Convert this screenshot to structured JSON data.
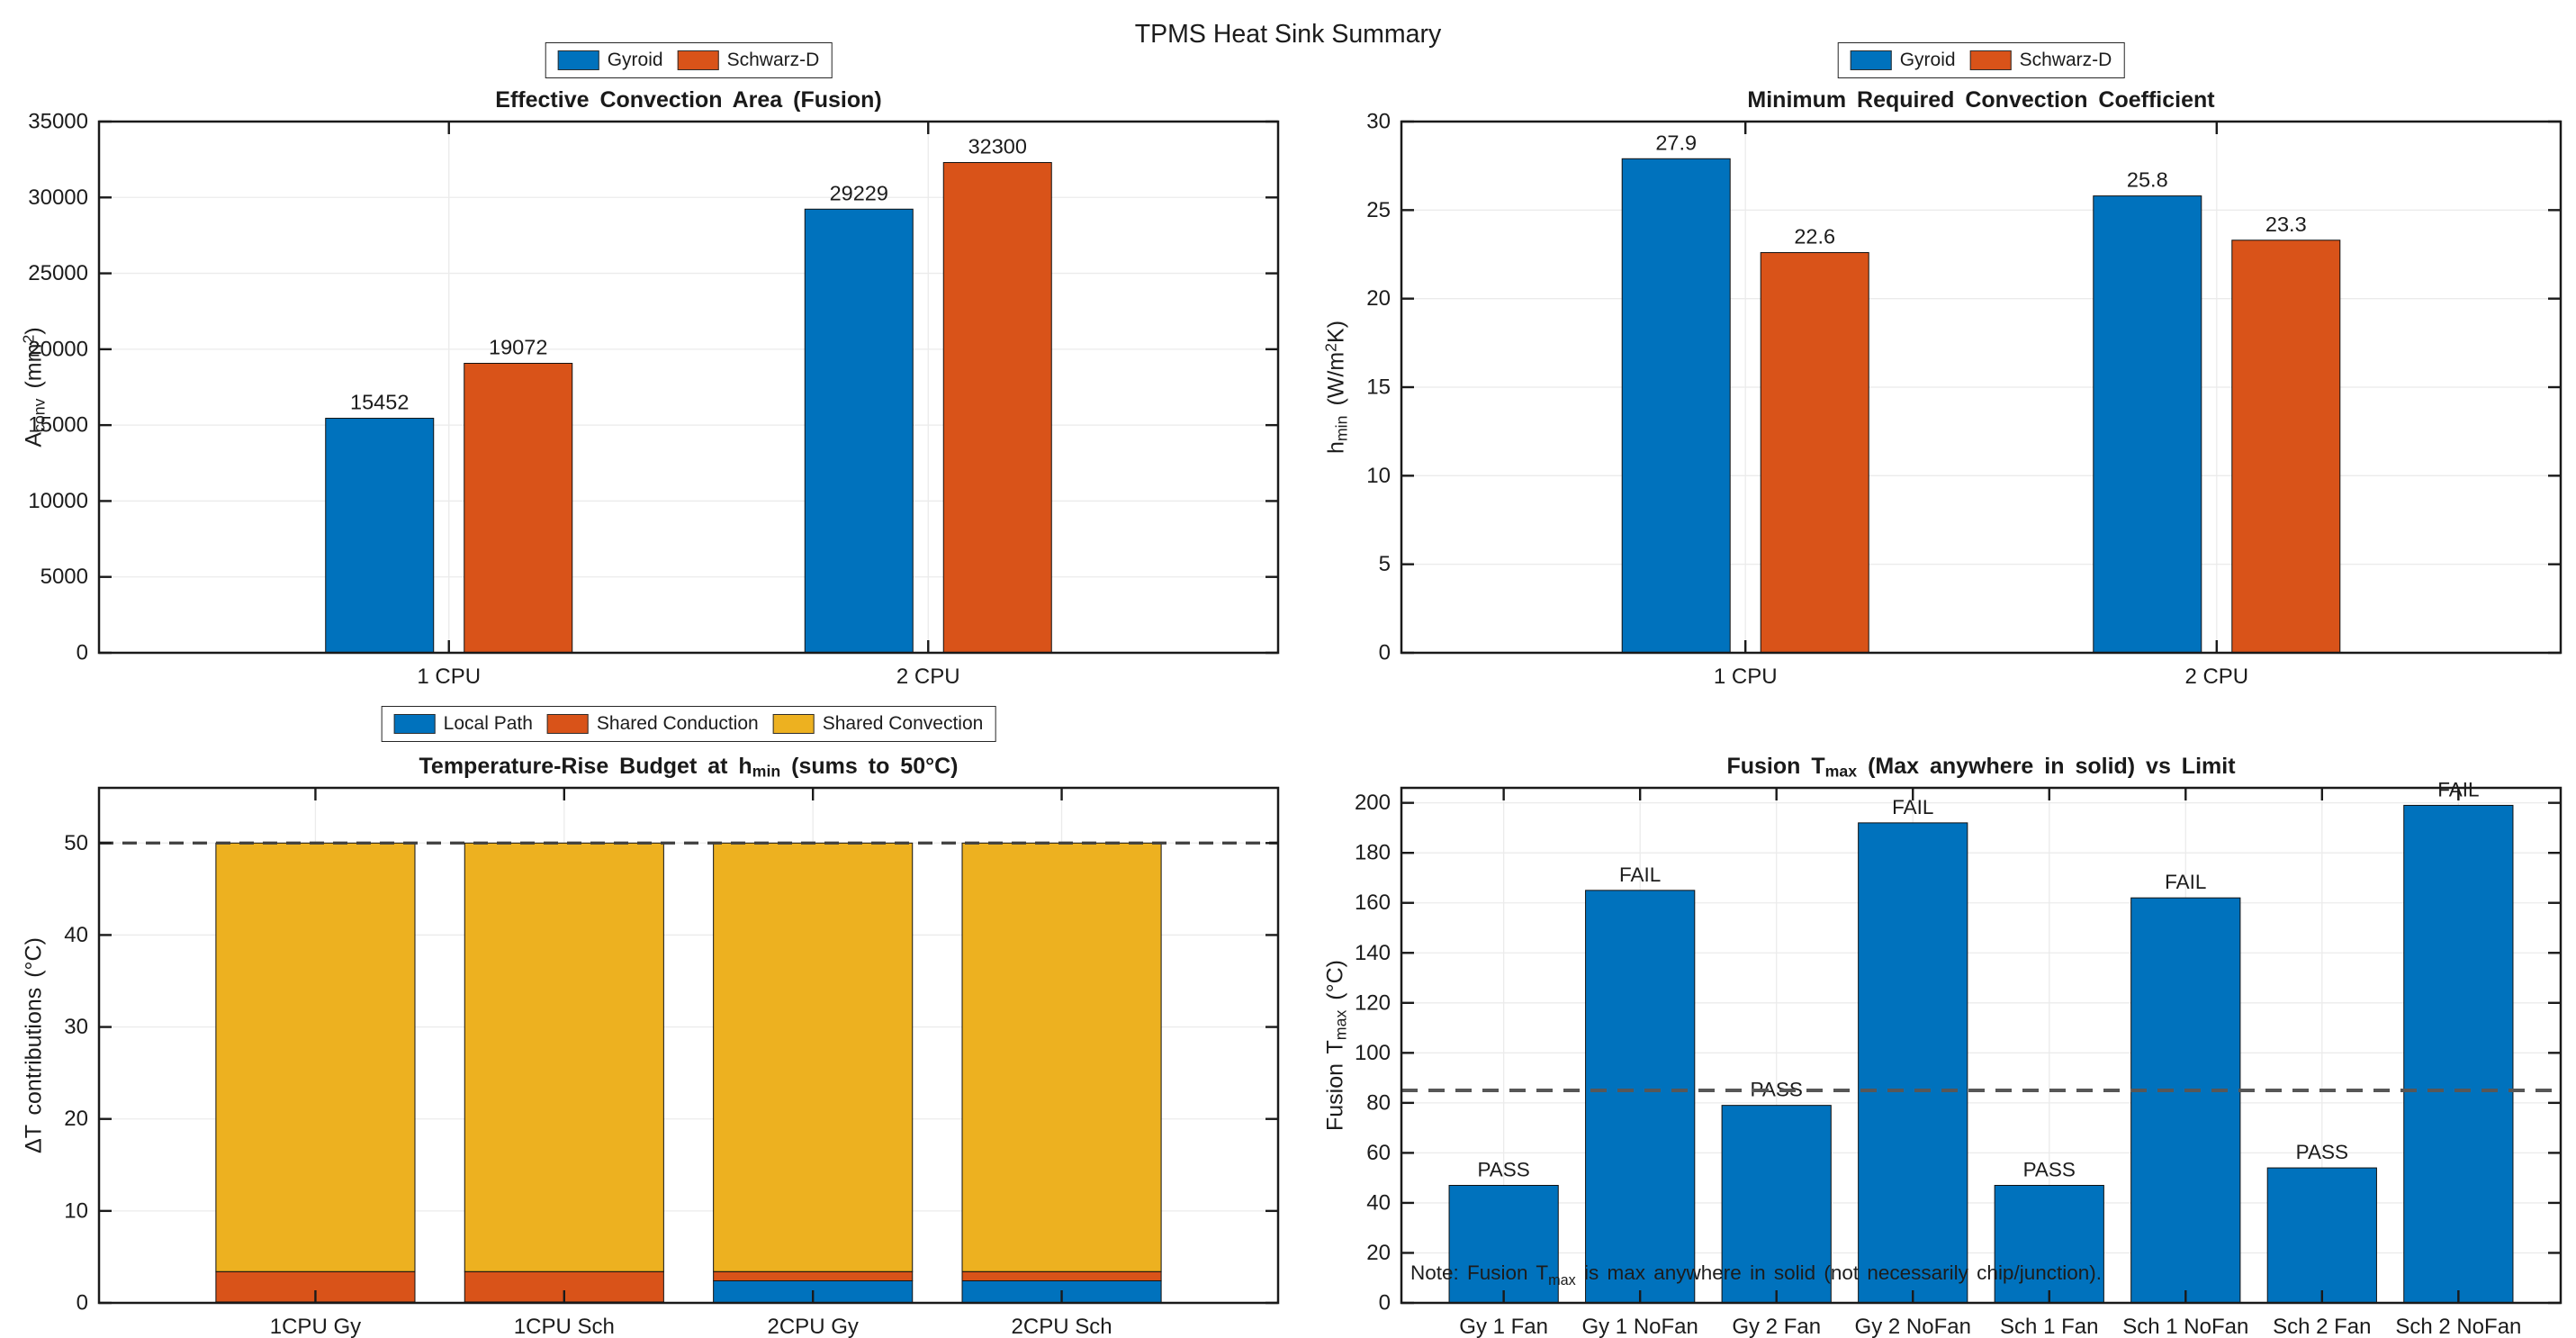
{
  "figure": {
    "title": "TPMS Heat Sink Summary"
  },
  "colors": {
    "blue": "#0072BD",
    "orange": "#D95319",
    "gold": "#EDB120",
    "axis": "#1a1a1a",
    "grid": "#ebebeb",
    "text": "#1c1c1c"
  },
  "chart_data": [
    {
      "id": "effective-convection-area",
      "type": "bar",
      "title": "Effective Convection Area (Fusion)",
      "title_parts": [
        {
          "t": "Effective Convection Area (Fusion)"
        }
      ],
      "ylabel": "A_conv (mm^2)",
      "ylabel_parts": [
        {
          "t": "A"
        },
        {
          "t": "conv",
          "sub": true
        },
        {
          "t": " (mm"
        },
        {
          "t": "2",
          "sup": true
        },
        {
          "t": ")"
        }
      ],
      "categories": [
        "1 CPU",
        "2 CPU"
      ],
      "series": [
        {
          "name": "Gyroid",
          "color": "#0072BD",
          "values": [
            15452,
            29229
          ]
        },
        {
          "name": "Schwarz-D",
          "color": "#D95319",
          "values": [
            19072,
            32300
          ]
        }
      ],
      "bar_value_labels": [
        [
          "15452",
          "29229"
        ],
        [
          "19072",
          "32300"
        ]
      ],
      "ylim": [
        0,
        35000
      ],
      "ytick_step": 5000,
      "grid": true,
      "legend": [
        "Gyroid",
        "Schwarz-D"
      ]
    },
    {
      "id": "minimum-required-convection-coefficient",
      "type": "bar",
      "title": "Minimum Required Convection Coefficient",
      "title_parts": [
        {
          "t": "Minimum Required Convection Coefficient"
        }
      ],
      "ylabel": "h_min (W/m^2K)",
      "ylabel_parts": [
        {
          "t": "h"
        },
        {
          "t": "min",
          "sub": true
        },
        {
          "t": " (W/m"
        },
        {
          "t": "2",
          "sup": true
        },
        {
          "t": "K)"
        }
      ],
      "categories": [
        "1 CPU",
        "2 CPU"
      ],
      "series": [
        {
          "name": "Gyroid",
          "color": "#0072BD",
          "values": [
            27.9,
            25.8
          ]
        },
        {
          "name": "Schwarz-D",
          "color": "#D95319",
          "values": [
            22.6,
            23.3
          ]
        }
      ],
      "bar_value_labels": [
        [
          "27.9",
          "25.8"
        ],
        [
          "22.6",
          "23.3"
        ]
      ],
      "ylim": [
        0,
        30
      ],
      "ytick_step": 5,
      "grid": true,
      "legend": [
        "Gyroid",
        "Schwarz-D"
      ]
    },
    {
      "id": "temperature-rise-budget",
      "type": "stacked-bar",
      "title": "Temperature-Rise Budget at h_min (sums to 50°C)",
      "title_parts": [
        {
          "t": "Temperature-Rise Budget at h"
        },
        {
          "t": "min",
          "sub": true
        },
        {
          "t": " (sums to 50°C)"
        }
      ],
      "ylabel": "ΔT contributions (°C)",
      "ylabel_parts": [
        {
          "t": "ΔT contributions (°C)"
        }
      ],
      "categories": [
        "1CPU Gy",
        "1CPU Sch",
        "2CPU Gy",
        "2CPU Sch"
      ],
      "series": [
        {
          "name": "Local Path",
          "color": "#0072BD",
          "values": [
            0.1,
            0.1,
            2.4,
            2.4
          ]
        },
        {
          "name": "Shared Conduction",
          "color": "#D95319",
          "values": [
            3.3,
            3.3,
            1.0,
            1.0
          ]
        },
        {
          "name": "Shared Convection",
          "color": "#EDB120",
          "values": [
            46.6,
            46.6,
            46.6,
            46.6
          ]
        }
      ],
      "ylim": [
        0,
        56
      ],
      "ytick_step": 10,
      "yticks_max": 50,
      "grid": true,
      "threshold": {
        "value": 50,
        "style": "dashed",
        "color": "#3f3f3f",
        "width": 3.2,
        "dash": "16 10"
      },
      "legend": [
        "Local Path",
        "Shared Conduction",
        "Shared Convection"
      ]
    },
    {
      "id": "fusion-tmax-vs-limit",
      "type": "bar",
      "title": "Fusion T_max (Max anywhere in solid) vs Limit",
      "title_parts": [
        {
          "t": "Fusion T"
        },
        {
          "t": "max",
          "sub": true
        },
        {
          "t": " (Max anywhere in solid) vs Limit"
        }
      ],
      "ylabel": "Fusion T_max (°C)",
      "ylabel_parts": [
        {
          "t": "Fusion T"
        },
        {
          "t": "max",
          "sub": true
        },
        {
          "t": " (°C)"
        }
      ],
      "categories": [
        "Gy 1 Fan",
        "Gy 1 NoFan",
        "Gy 2 Fan",
        "Gy 2 NoFan",
        "Sch 1 Fan",
        "Sch 1 NoFan",
        "Sch 2 Fan",
        "Sch 2 NoFan"
      ],
      "series": [
        {
          "name": "Fusion Tmax",
          "color": "#0072BD",
          "values": [
            47,
            165,
            79,
            192,
            47,
            162,
            54,
            199
          ]
        }
      ],
      "bar_value_labels": [
        [
          "PASS",
          "FAIL",
          "PASS",
          "FAIL",
          "PASS",
          "FAIL",
          "PASS",
          "FAIL"
        ]
      ],
      "ylim": [
        0,
        206
      ],
      "ytick_step": 20,
      "yticks_max": 200,
      "grid": true,
      "threshold": {
        "value": 85,
        "style": "dashed",
        "color": "#575757",
        "width": 4,
        "dash": "18 12"
      },
      "note": "Note: Fusion T_max is max anywhere in solid (not necessarily chip/junction).",
      "note_parts": [
        {
          "t": "Note: Fusion T"
        },
        {
          "t": "max",
          "sub": true
        },
        {
          "t": " is max anywhere in solid (not necessarily chip/junction)."
        }
      ]
    }
  ]
}
